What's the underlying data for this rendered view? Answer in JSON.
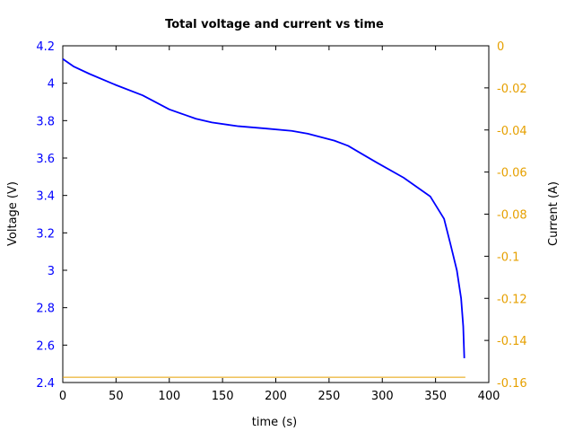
{
  "chart_data": {
    "type": "line",
    "title": "Total voltage and current vs time",
    "xlabel": "time (s)",
    "ylabel": "Voltage (V)",
    "y2label": "Current (A)",
    "xlim": [
      0,
      400
    ],
    "ylim": [
      2.4,
      4.2
    ],
    "y2lim": [
      -0.16,
      0
    ],
    "x_ticks": [
      "0",
      "50",
      "100",
      "150",
      "200",
      "250",
      "300",
      "350",
      "400"
    ],
    "y_ticks": [
      "2.4",
      "2.6",
      "2.8",
      "3",
      "3.2",
      "3.4",
      "3.6",
      "3.8",
      "4",
      "4.2"
    ],
    "y2_ticks": [
      "-0.16",
      "-0.14",
      "-0.12",
      "-0.1",
      "-0.08",
      "-0.06",
      "-0.04",
      "-0.02",
      "0"
    ],
    "grid": false,
    "series": [
      {
        "axis": "left",
        "color": "#0000ff",
        "x": [
          0,
          10,
          25,
          50,
          75,
          90,
          100,
          115,
          125,
          140,
          165,
          190,
          215,
          230,
          255,
          268,
          280,
          295,
          320,
          345,
          358,
          364,
          370,
          374,
          376,
          377
        ],
        "y": [
          4.13,
          4.09,
          4.05,
          3.99,
          3.935,
          3.89,
          3.86,
          3.83,
          3.81,
          3.79,
          3.77,
          3.758,
          3.745,
          3.73,
          3.693,
          3.665,
          3.625,
          3.575,
          3.495,
          3.395,
          3.275,
          3.14,
          3.0,
          2.85,
          2.7,
          2.53
        ]
      },
      {
        "axis": "right",
        "color": "#e6a000",
        "x": [
          0,
          378
        ],
        "y": [
          -0.1575,
          -0.1575
        ]
      }
    ]
  },
  "colors": {
    "left_axis": "#0000ff",
    "right_axis": "#e6a000",
    "frame": "#000000"
  }
}
